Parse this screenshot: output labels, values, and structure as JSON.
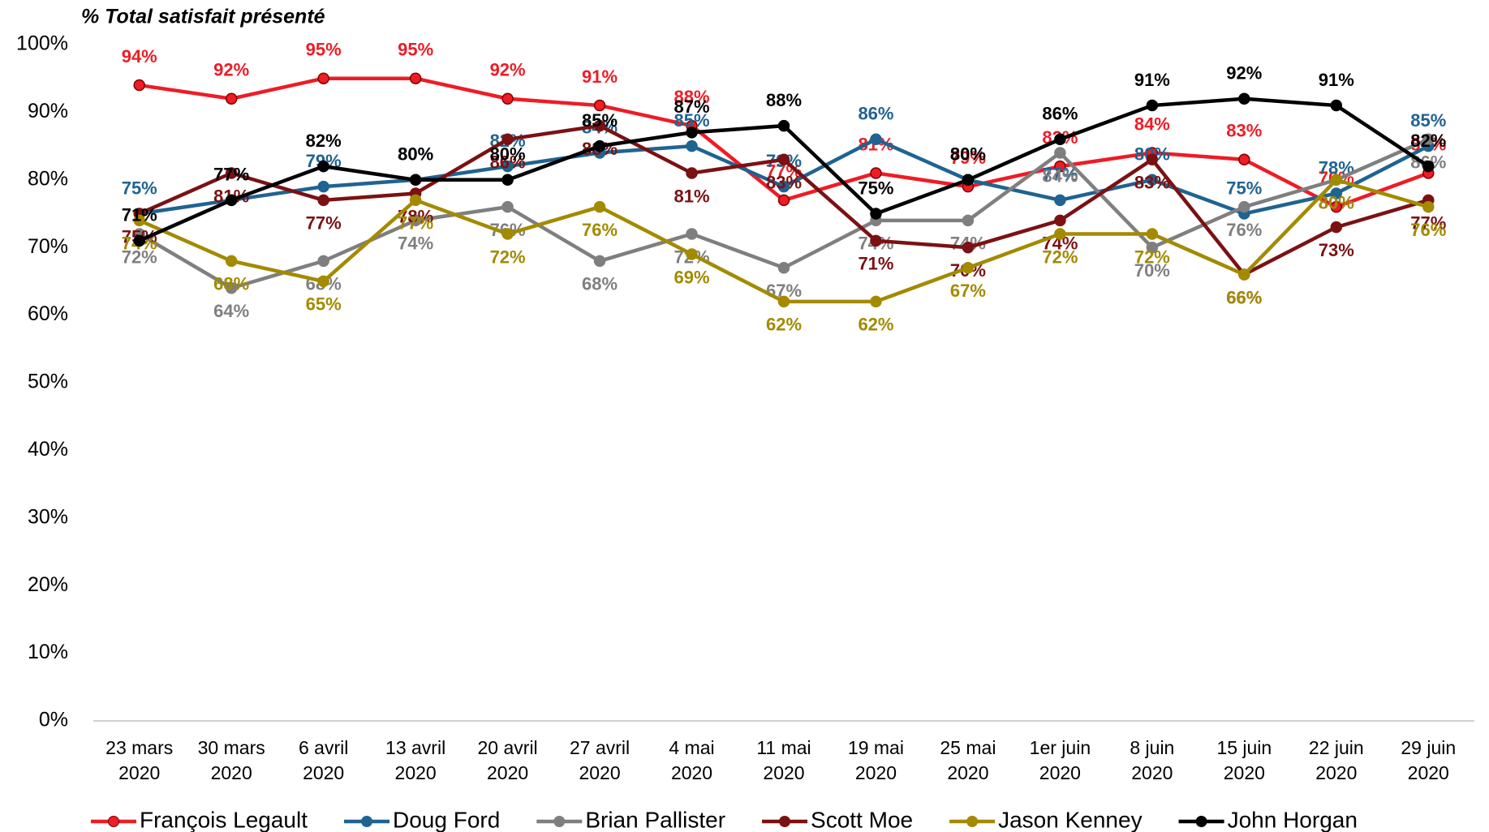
{
  "chart_data": {
    "type": "line",
    "title": "% Total satisfait présenté",
    "categories": [
      "23 mars 2020",
      "30 mars 2020",
      "6 avril 2020",
      "13 avril 2020",
      "20 avril 2020",
      "27 avril 2020",
      "4 mai 2020",
      "11 mai 2020",
      "19 mai 2020",
      "25 mai 2020",
      "1er juin 2020",
      "8 juin 2020",
      "15 juin 2020",
      "22 juin 2020",
      "29 juin 2020"
    ],
    "ylim": [
      0,
      100
    ],
    "yticks": [
      {
        "value": 0,
        "label": "0%"
      },
      {
        "value": 10,
        "label": "10%"
      },
      {
        "value": 20,
        "label": "20%"
      },
      {
        "value": 30,
        "label": "30%"
      },
      {
        "value": 40,
        "label": "40%"
      },
      {
        "value": 50,
        "label": "50%"
      },
      {
        "value": 60,
        "label": "60%"
      },
      {
        "value": 70,
        "label": "70%"
      },
      {
        "value": 80,
        "label": "80%"
      },
      {
        "value": 90,
        "label": "90%"
      },
      {
        "value": 100,
        "label": "100%"
      }
    ],
    "legend": "bottom",
    "series": [
      {
        "name": "François Legault",
        "color": "#ee1c25",
        "values": [
          94,
          92,
          95,
          95,
          92,
          91,
          88,
          77,
          81,
          79,
          82,
          84,
          83,
          76,
          81
        ],
        "value_labels": [
          "94%",
          "92%",
          "95%",
          "95%",
          "92%",
          "91%",
          "88%",
          "77%",
          "81%",
          "79%",
          "82%",
          "84%",
          "83%",
          "76%",
          "81%"
        ]
      },
      {
        "name": "Doug Ford",
        "color": "#1f6391",
        "values": [
          75,
          77,
          79,
          80,
          82,
          84,
          85,
          79,
          86,
          80,
          77,
          80,
          75,
          78,
          85
        ],
        "value_labels": [
          "75%",
          "77%",
          "79%",
          "80%",
          "82%",
          "84%",
          "85%",
          "79%",
          "86%",
          "80%",
          "77%",
          "80%",
          "75%",
          "78%",
          "85%"
        ]
      },
      {
        "name": "Brian Pallister",
        "color": "#7f7f7f",
        "values": [
          72,
          64,
          68,
          74,
          76,
          68,
          72,
          67,
          74,
          74,
          84,
          70,
          76,
          80,
          86
        ],
        "value_labels": [
          "72%",
          "64%",
          "68%",
          "74%",
          "76%",
          "68%",
          "72%",
          "67%",
          "74%",
          "74%",
          "84%",
          "70%",
          "76%",
          "80%",
          "86%"
        ]
      },
      {
        "name": "Scott Moe",
        "color": "#7b1113",
        "values": [
          75,
          81,
          77,
          78,
          86,
          88,
          81,
          83,
          71,
          70,
          74,
          83,
          66,
          73,
          77
        ],
        "value_labels": [
          "75%",
          "81%",
          "77%",
          "78%",
          "86%",
          "88%",
          "81%",
          "83%",
          "71%",
          "70%",
          "74%",
          "83%",
          "66%",
          "73%",
          "77%"
        ]
      },
      {
        "name": "Jason Kenney",
        "color": "#a38a00",
        "values": [
          74,
          68,
          65,
          77,
          72,
          76,
          69,
          62,
          62,
          67,
          72,
          72,
          66,
          80,
          76
        ],
        "value_labels": [
          "74%",
          "68%",
          "65%",
          "77%",
          "72%",
          "76%",
          "69%",
          "62%",
          "62%",
          "67%",
          "72%",
          "72%",
          "66%",
          "80%",
          "76%"
        ]
      },
      {
        "name": "John Horgan",
        "color": "#000000",
        "values": [
          71,
          77,
          82,
          80,
          80,
          85,
          87,
          88,
          75,
          80,
          86,
          91,
          92,
          91,
          82
        ],
        "value_labels": [
          "71%",
          "77%",
          "82%",
          "80%",
          "80%",
          "85%",
          "87%",
          "88%",
          "75%",
          "80%",
          "86%",
          "91%",
          "92%",
          "91%",
          "82%"
        ]
      }
    ]
  }
}
